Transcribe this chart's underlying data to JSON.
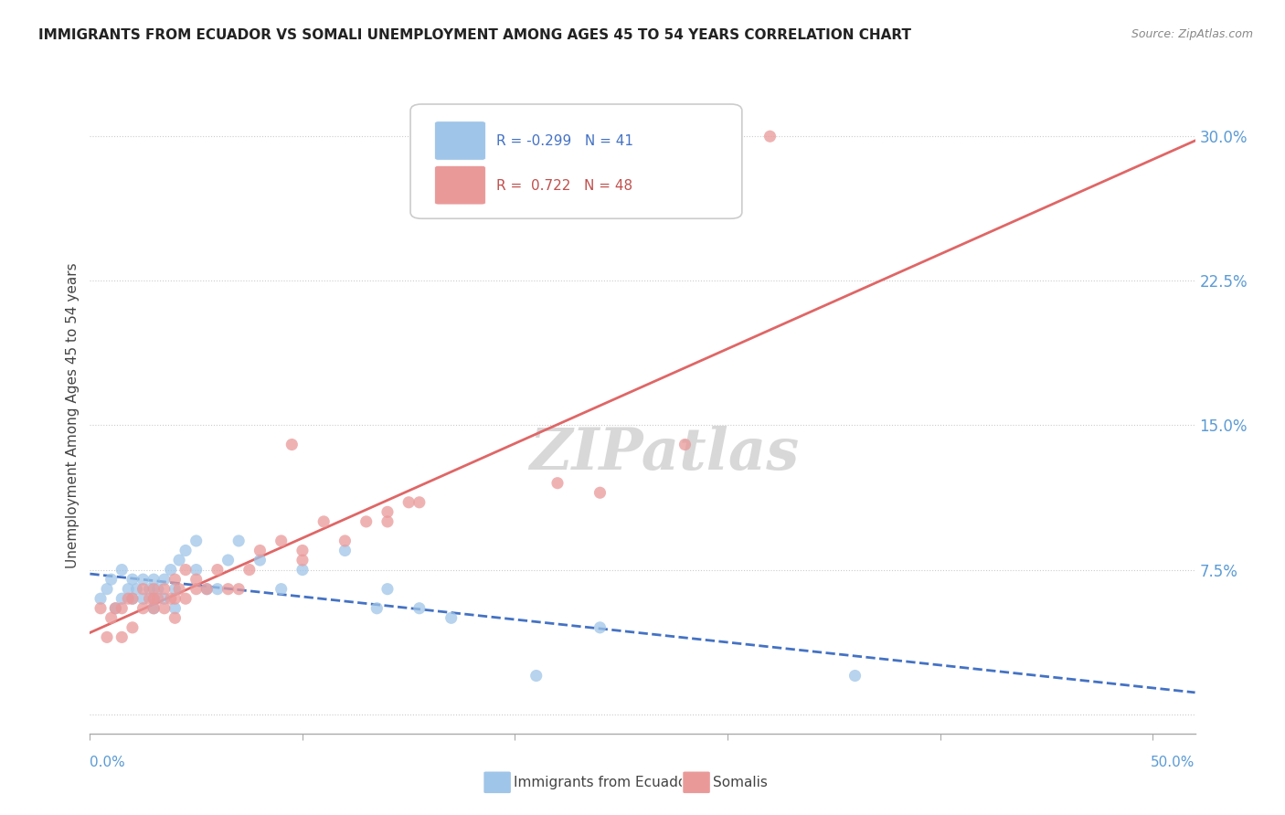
{
  "title": "IMMIGRANTS FROM ECUADOR VS SOMALI UNEMPLOYMENT AMONG AGES 45 TO 54 YEARS CORRELATION CHART",
  "source": "Source: ZipAtlas.com",
  "ylabel": "Unemployment Among Ages 45 to 54 years",
  "legend_ecuador": "Immigrants from Ecuador",
  "legend_somali": "Somalis",
  "r_ecuador": -0.299,
  "n_ecuador": 41,
  "r_somali": 0.722,
  "n_somali": 48,
  "ecuador_color": "#9fc5e8",
  "somali_color": "#ea9999",
  "ecuador_line_color": "#4472c4",
  "somali_line_color": "#e06666",
  "watermark_text": "ZIPatlas",
  "ytick_vals": [
    0.0,
    0.075,
    0.15,
    0.225,
    0.3
  ],
  "ytick_labels": [
    "",
    "7.5%",
    "15.0%",
    "22.5%",
    "30.0%"
  ],
  "xtick_vals": [
    0.0,
    0.1,
    0.2,
    0.3,
    0.4,
    0.5
  ],
  "xlim": [
    0.0,
    0.52
  ],
  "ylim": [
    -0.01,
    0.32
  ],
  "ecuador_scatter_x": [
    0.005,
    0.008,
    0.01,
    0.012,
    0.015,
    0.015,
    0.018,
    0.02,
    0.02,
    0.022,
    0.025,
    0.025,
    0.028,
    0.03,
    0.03,
    0.03,
    0.032,
    0.035,
    0.035,
    0.038,
    0.04,
    0.04,
    0.042,
    0.045,
    0.05,
    0.05,
    0.055,
    0.06,
    0.065,
    0.07,
    0.08,
    0.09,
    0.1,
    0.12,
    0.135,
    0.14,
    0.155,
    0.17,
    0.21,
    0.24,
    0.36
  ],
  "ecuador_scatter_y": [
    0.06,
    0.065,
    0.07,
    0.055,
    0.06,
    0.075,
    0.065,
    0.06,
    0.07,
    0.065,
    0.06,
    0.07,
    0.065,
    0.055,
    0.06,
    0.07,
    0.065,
    0.06,
    0.07,
    0.075,
    0.055,
    0.065,
    0.08,
    0.085,
    0.075,
    0.09,
    0.065,
    0.065,
    0.08,
    0.09,
    0.08,
    0.065,
    0.075,
    0.085,
    0.055,
    0.065,
    0.055,
    0.05,
    0.02,
    0.045,
    0.02
  ],
  "somali_scatter_x": [
    0.005,
    0.008,
    0.01,
    0.012,
    0.015,
    0.015,
    0.018,
    0.02,
    0.02,
    0.025,
    0.025,
    0.028,
    0.03,
    0.03,
    0.03,
    0.032,
    0.035,
    0.035,
    0.038,
    0.04,
    0.04,
    0.04,
    0.042,
    0.045,
    0.045,
    0.05,
    0.05,
    0.055,
    0.06,
    0.065,
    0.07,
    0.075,
    0.08,
    0.09,
    0.095,
    0.1,
    0.1,
    0.11,
    0.12,
    0.13,
    0.14,
    0.14,
    0.15,
    0.155,
    0.22,
    0.24,
    0.28,
    0.32
  ],
  "somali_scatter_y": [
    0.055,
    0.04,
    0.05,
    0.055,
    0.04,
    0.055,
    0.06,
    0.045,
    0.06,
    0.055,
    0.065,
    0.06,
    0.055,
    0.06,
    0.065,
    0.06,
    0.055,
    0.065,
    0.06,
    0.05,
    0.06,
    0.07,
    0.065,
    0.06,
    0.075,
    0.065,
    0.07,
    0.065,
    0.075,
    0.065,
    0.065,
    0.075,
    0.085,
    0.09,
    0.14,
    0.08,
    0.085,
    0.1,
    0.09,
    0.1,
    0.1,
    0.105,
    0.11,
    0.11,
    0.12,
    0.115,
    0.14,
    0.3
  ]
}
